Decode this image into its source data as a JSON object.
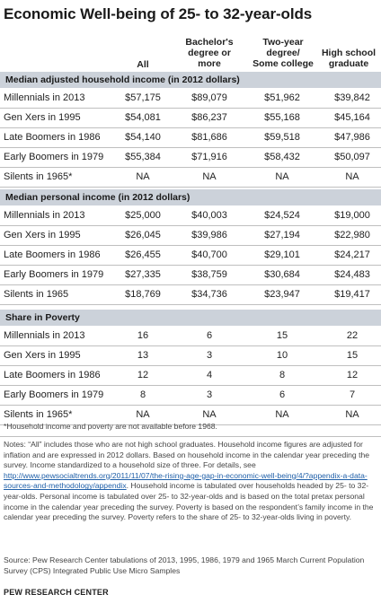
{
  "title": "Economic Well-being of 25- to 32-year-olds",
  "columns": [
    "All",
    "Bachelor's degree or more",
    "Two-year degree/ Some college",
    "High school graduate"
  ],
  "column_lines": [
    [
      "All"
    ],
    [
      "Bachelor's",
      "degree or",
      "more"
    ],
    [
      "Two-year",
      "degree/",
      "Some college"
    ],
    [
      "High school",
      "graduate"
    ]
  ],
  "sections": [
    {
      "title": "Median adjusted household income (in 2012 dollars)",
      "rows": [
        {
          "label": "Millennials in 2013",
          "values": [
            "$57,175",
            "$89,079",
            "$51,962",
            "$39,842"
          ]
        },
        {
          "label": "Gen Xers in 1995",
          "values": [
            "$54,081",
            "$86,237",
            "$55,168",
            "$45,164"
          ]
        },
        {
          "label": "Late Boomers in 1986",
          "values": [
            "$54,140",
            "$81,686",
            "$59,518",
            "$47,986"
          ]
        },
        {
          "label": "Early Boomers in 1979",
          "values": [
            "$55,384",
            "$71,916",
            "$58,432",
            "$50,097"
          ]
        },
        {
          "label": "Silents in 1965*",
          "values": [
            "NA",
            "NA",
            "NA",
            "NA"
          ]
        }
      ]
    },
    {
      "title": "Median personal income (in 2012 dollars)",
      "rows": [
        {
          "label": "Millennials in 2013",
          "values": [
            "$25,000",
            "$40,003",
            "$24,524",
            "$19,000"
          ]
        },
        {
          "label": "Gen Xers in 1995",
          "values": [
            "$26,045",
            "$39,986",
            "$27,194",
            "$22,980"
          ]
        },
        {
          "label": "Late Boomers in 1986",
          "values": [
            "$26,455",
            "$40,700",
            "$29,101",
            "$24,217"
          ]
        },
        {
          "label": "Early Boomers in 1979",
          "values": [
            "$27,335",
            "$38,759",
            "$30,684",
            "$24,483"
          ]
        },
        {
          "label": "Silents in 1965",
          "values": [
            "$18,769",
            "$34,736",
            "$23,947",
            "$19,417"
          ]
        }
      ]
    },
    {
      "title": "Share in Poverty",
      "rows": [
        {
          "label": "Millennials in 2013",
          "values": [
            "16",
            "6",
            "15",
            "22"
          ]
        },
        {
          "label": "Gen Xers in 1995",
          "values": [
            "13",
            "3",
            "10",
            "15"
          ]
        },
        {
          "label": "Late Boomers in 1986",
          "values": [
            "12",
            "4",
            "8",
            "12"
          ]
        },
        {
          "label": "Early Boomers in 1979",
          "values": [
            "8",
            "3",
            "6",
            "7"
          ]
        },
        {
          "label": "Silents in 1965*",
          "values": [
            "NA",
            "NA",
            "NA",
            "NA"
          ]
        }
      ]
    }
  ],
  "footnote_star": "*Household income and poverty are not available before 1968.",
  "notes_before_link": "Notes: “All” includes those who are not high school graduates. Household income figures are adjusted for inflation and are expressed in 2012 dollars. Based on household income in the calendar year preceding the survey. Income standardized to a household size of three. For details, see ",
  "notes_link": "http://www.pewsocialtrends.org/2011/11/07/the-rising-age-gap-in-economic-well-being/4/?appendix-a-data-sources-and-methodology/appendix",
  "notes_after_link": ". Household income is tabulated over households headed by 25- to 32-year-olds. Personal income is tabulated over 25- to 32-year-olds and is based on the total pretax personal income in the calendar year preceding the survey. Poverty is based on the respondent’s family income in the calendar year preceding the survey. Poverty refers to the share of 25- to 32-year-olds living in poverty.",
  "source": "Source: Pew Research Center tabulations of 2013, 1995, 1986, 1979 and 1965 March Current Population Survey (CPS) Integrated Public Use Micro Samples",
  "brand": "PEW RESEARCH CENTER",
  "colors": {
    "section_header_bg": "#ccd2da",
    "link": "#1f5fa8"
  }
}
